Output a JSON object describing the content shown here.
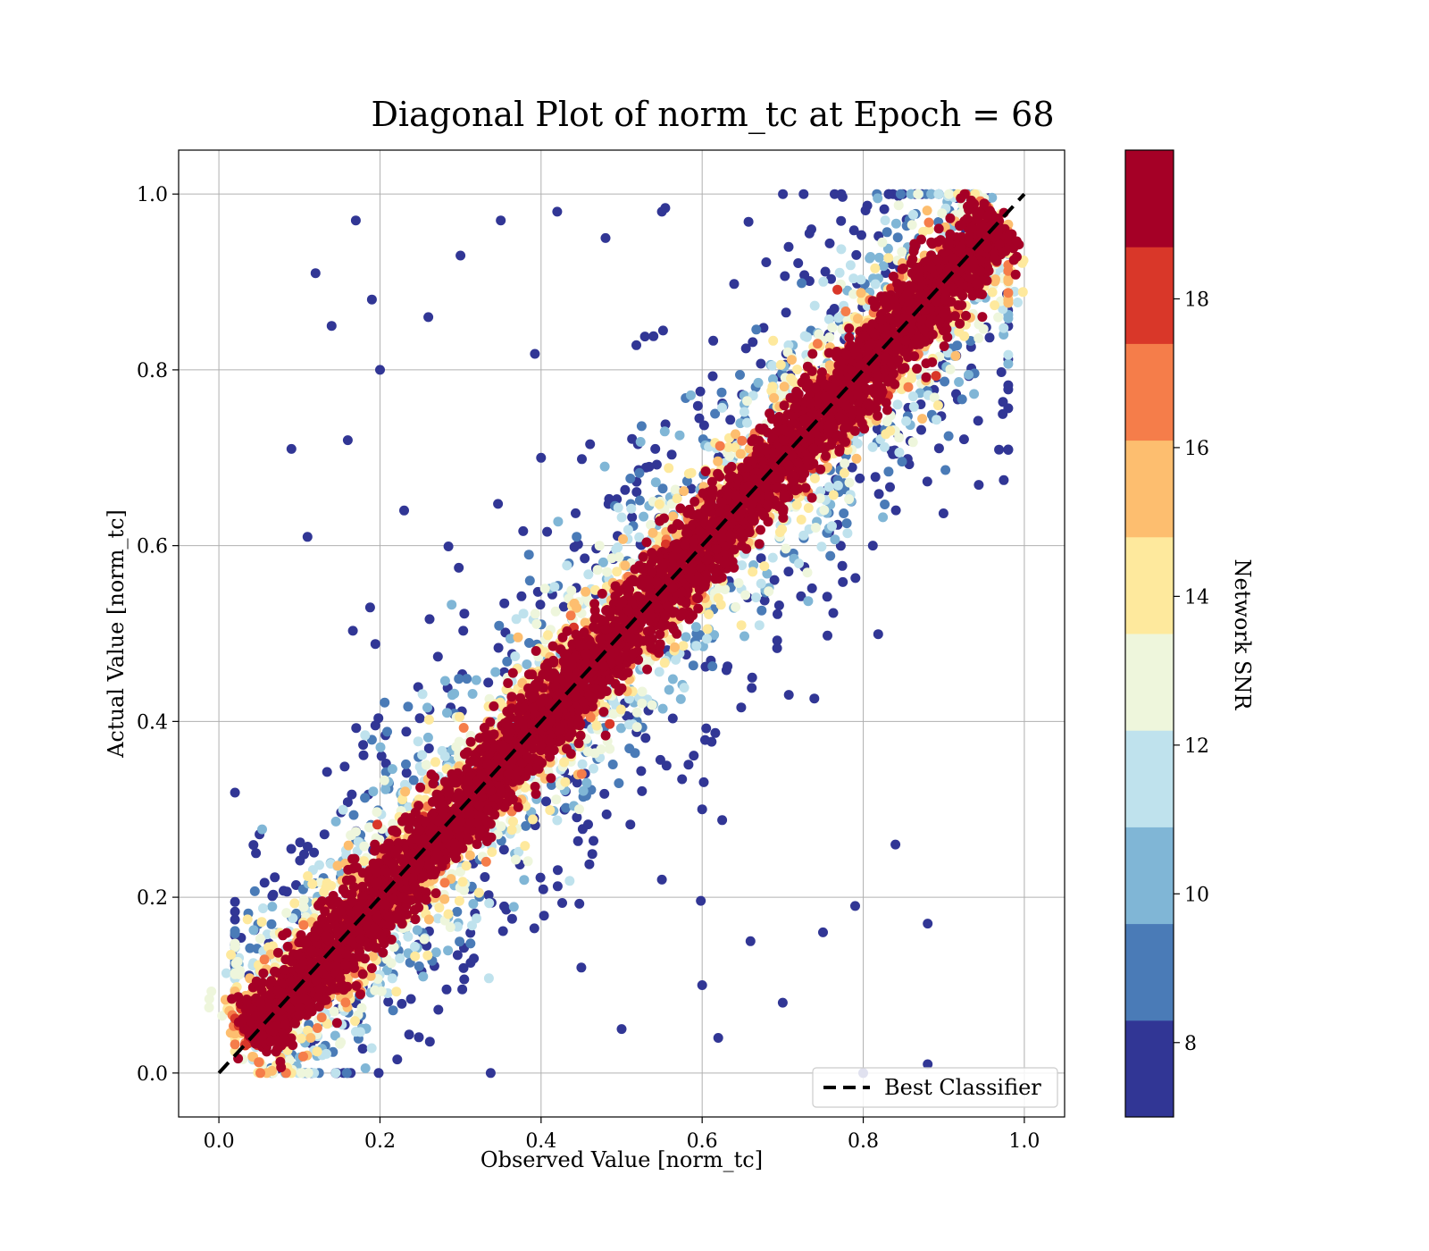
{
  "chart_data": {
    "type": "scatter",
    "title": "Diagonal Plot of norm_tc at Epoch = 68",
    "xlabel": "Observed Value [norm_tc]",
    "ylabel": "Actual Value [norm_tc]",
    "xlim": [
      -0.05,
      1.05
    ],
    "ylim": [
      -0.05,
      1.05
    ],
    "xticks": [
      "0.0",
      "0.2",
      "0.4",
      "0.6",
      "0.8",
      "1.0"
    ],
    "yticks": [
      "0.0",
      "0.2",
      "0.4",
      "0.6",
      "0.8",
      "1.0"
    ],
    "grid": true,
    "reference_line": {
      "label": "Best Classifier",
      "from": [
        0,
        0
      ],
      "to": [
        1,
        1
      ],
      "style": "dashed",
      "color": "#000000"
    },
    "legend": {
      "entries": [
        "Best Classifier"
      ],
      "placement": "lower-right"
    },
    "colorbar": {
      "label": "Network SNR",
      "range": [
        7,
        20
      ],
      "ticks": [
        "8",
        "10",
        "12",
        "14",
        "16",
        "18"
      ],
      "colors": [
        "#313695",
        "#4a7bb7",
        "#80b6d6",
        "#bfe2ed",
        "#eef6dc",
        "#fee99d",
        "#fdbe6f",
        "#f57d4a",
        "#d93729",
        "#a50026"
      ]
    },
    "description_points": {
      "note_series": "dense diagonal band of high-SNR points around y = x, with low-SNR scatter spreading outward",
      "band_center": [
        [
          0.03,
          0.03
        ],
        [
          0.5,
          0.5
        ],
        [
          0.97,
          0.97
        ]
      ],
      "outliers": [
        [
          0.09,
          0.71
        ],
        [
          0.12,
          0.91
        ],
        [
          0.11,
          0.61
        ],
        [
          0.14,
          0.85
        ],
        [
          0.16,
          0.72
        ],
        [
          0.17,
          0.97
        ],
        [
          0.19,
          0.88
        ],
        [
          0.2,
          0.8
        ],
        [
          0.23,
          0.64
        ],
        [
          0.26,
          0.86
        ],
        [
          0.3,
          0.93
        ],
        [
          0.35,
          0.97
        ],
        [
          0.42,
          0.98
        ],
        [
          0.48,
          0.95
        ],
        [
          0.55,
          0.98
        ],
        [
          0.62,
          0.04
        ],
        [
          0.7,
          0.08
        ],
        [
          0.75,
          0.16
        ],
        [
          0.79,
          0.19
        ],
        [
          0.84,
          0.26
        ],
        [
          0.88,
          0.17
        ],
        [
          0.88,
          0.01
        ],
        [
          0.8,
          0.0
        ],
        [
          0.66,
          0.15
        ],
        [
          0.6,
          0.1
        ],
        [
          0.5,
          0.05
        ],
        [
          0.45,
          0.12
        ],
        [
          0.55,
          0.22
        ],
        [
          0.6,
          0.3
        ],
        [
          0.4,
          0.7
        ]
      ]
    }
  }
}
